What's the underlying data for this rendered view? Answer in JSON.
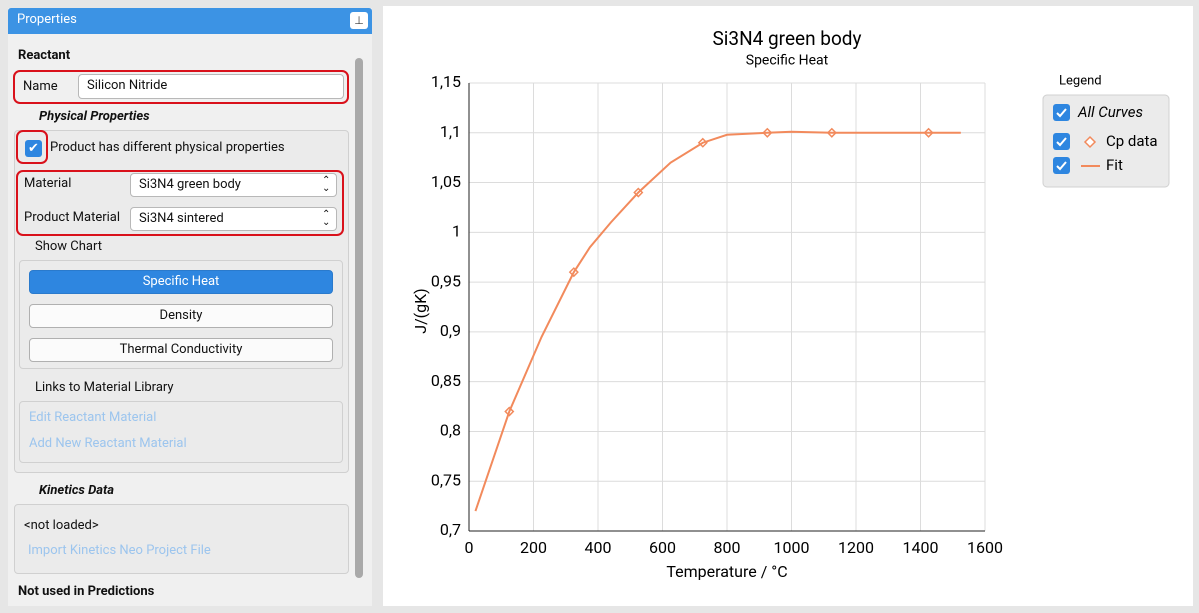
{
  "panel": {
    "header": "Properties",
    "reactant": "Reactant",
    "name_label": "Name",
    "name_value": "Silicon Nitride",
    "physical_properties": "Physical Properties",
    "product_checkbox": "Product has different physical properties",
    "material_label": "Material",
    "material_value": "Si3N4 green body",
    "product_material_label": "Product Material",
    "product_material_value": "Si3N4 sintered",
    "show_chart": "Show Chart",
    "buttons": [
      "Specific Heat",
      "Density",
      "Thermal Conductivity"
    ],
    "links_title": "Links to Material Library",
    "links": [
      "Edit Reactant Material",
      "Add New Reactant Material"
    ],
    "kinetics_title": "Kinetics Data",
    "kinetics_status": "<not loaded>",
    "kinetics_link": "Import Kinetics Neo Project File",
    "not_used": "Not used in Predictions"
  },
  "chart_data": {
    "type": "line",
    "title": "Si3N4 green body",
    "subtitle": "Specific Heat",
    "x_label": "Temperature / °C",
    "y_label": "J/(gK)",
    "legend_title": "Legend",
    "legend_all": "All Curves",
    "xlim": [
      0,
      1600
    ],
    "xticks": [
      0,
      200,
      400,
      600,
      800,
      1000,
      1200,
      1400,
      1600
    ],
    "ylim": [
      0.7,
      1.15
    ],
    "yticks": [
      {
        "value": 0.7,
        "label": "0,7"
      },
      {
        "value": 0.75,
        "label": "0,75"
      },
      {
        "value": 0.8,
        "label": "0,8"
      },
      {
        "value": 0.85,
        "label": "0,85"
      },
      {
        "value": 0.9,
        "label": "0,9"
      },
      {
        "value": 0.95,
        "label": "0,95"
      },
      1,
      {
        "value": 1.05,
        "label": "1,05"
      },
      {
        "value": 1.1,
        "label": "1,1"
      },
      {
        "value": 1.15,
        "label": "1,15"
      }
    ],
    "grid": true,
    "series": [
      {
        "name": "Cp data",
        "color": "#f28a5c",
        "marker": "diamond",
        "x": [
          125,
          325,
          525,
          725,
          925,
          1125,
          1425
        ],
        "values": [
          0.82,
          0.96,
          1.04,
          1.09,
          1.1,
          1.1,
          1.1
        ]
      },
      {
        "name": "Fit",
        "color": "#f28a5c",
        "marker": "none",
        "x": [
          20,
          125,
          225,
          325,
          375,
          440,
          525,
          625,
          725,
          800,
          925,
          1000,
          1125,
          1525
        ],
        "values": [
          0.72,
          0.82,
          0.895,
          0.96,
          0.985,
          1.01,
          1.04,
          1.07,
          1.09,
          1.098,
          1.1,
          1.101,
          1.1,
          1.1
        ]
      }
    ]
  }
}
